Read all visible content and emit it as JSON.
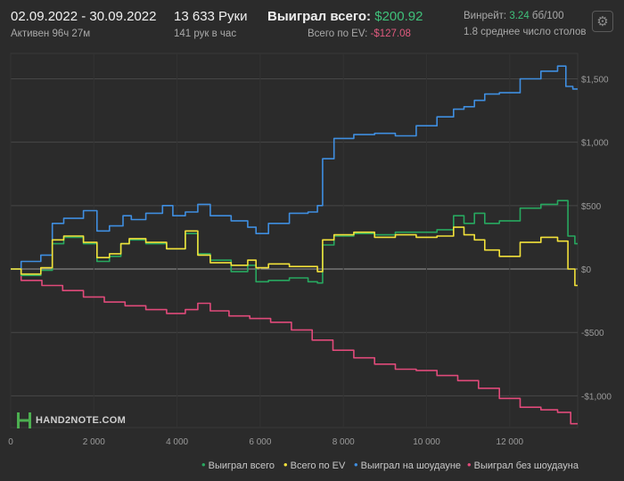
{
  "header": {
    "date_range": "02.09.2022 - 30.09.2022",
    "active_time": "Активен 96ч 27м",
    "hands": "13 633 Руки",
    "hands_per_hour": "141 рук в час",
    "won_total_label": "Выиграл всего:",
    "won_total_value": "$200.92",
    "ev_total_label": "Всего по EV:",
    "ev_total_value": "-$127.08",
    "winrate_label": "Винрейт:",
    "winrate_value": "3.24",
    "winrate_unit": "бб/100",
    "avg_tables": "1.8 среднее число столов"
  },
  "logo": {
    "text": "HAND2NOTE.COM"
  },
  "icons": {
    "settings": "gear-icon",
    "logo": "hand2note-logo-icon"
  },
  "colors": {
    "background": "#2b2b2b",
    "won_total": "#27a85f",
    "ev_total": "#f2e13a",
    "showdown": "#3f8ee0",
    "non_showdown": "#e04a7a"
  },
  "chart_data": {
    "type": "line",
    "xlim": [
      0,
      13633
    ],
    "ylim": [
      -1250,
      1700
    ],
    "x_ticks": [
      0,
      2000,
      4000,
      6000,
      8000,
      10000,
      12000
    ],
    "x_tick_labels": [
      "0",
      "2 000",
      "4 000",
      "6 000",
      "8 000",
      "10 000",
      "12 000"
    ],
    "y_ticks": [
      1500,
      1000,
      500,
      0,
      -500,
      -1000
    ],
    "y_tick_labels": [
      "$1,500",
      "$1,000",
      "$500",
      "$0",
      "-$500",
      "-$1,000"
    ],
    "grid": true,
    "legend_position": "bottom-right",
    "series": [
      {
        "name": "Выиграл всего",
        "x": [
          0,
          500,
          950,
          1050,
          1500,
          2000,
          2150,
          2600,
          2700,
          3000,
          3500,
          4000,
          4400,
          4600,
          5000,
          5600,
          5800,
          6000,
          6400,
          7000,
          7300,
          7450,
          7550,
          8000,
          8500,
          9000,
          9500,
          10000,
          10500,
          10800,
          11000,
          11300,
          11500,
          12000,
          12500,
          13000,
          13300,
          13500,
          13633
        ],
        "y": [
          0,
          -50,
          -10,
          200,
          250,
          200,
          60,
          100,
          200,
          230,
          200,
          160,
          280,
          120,
          70,
          -20,
          30,
          -100,
          -90,
          -70,
          -100,
          -110,
          190,
          260,
          280,
          270,
          290,
          290,
          310,
          420,
          360,
          440,
          360,
          380,
          480,
          510,
          540,
          260,
          200
        ]
      },
      {
        "name": "Всего по EV",
        "x": [
          0,
          500,
          950,
          1050,
          1500,
          2000,
          2150,
          2600,
          2700,
          3000,
          3500,
          4000,
          4400,
          4600,
          5000,
          5600,
          5800,
          6000,
          6400,
          7000,
          7300,
          7450,
          7550,
          8000,
          8500,
          9000,
          9500,
          10000,
          10500,
          10800,
          11000,
          11300,
          11500,
          12000,
          12500,
          13000,
          13300,
          13500,
          13633
        ],
        "y": [
          0,
          -40,
          10,
          230,
          260,
          210,
          90,
          120,
          200,
          240,
          210,
          160,
          300,
          110,
          50,
          30,
          70,
          10,
          40,
          20,
          20,
          -20,
          230,
          270,
          290,
          250,
          270,
          250,
          260,
          330,
          270,
          230,
          150,
          100,
          210,
          250,
          220,
          0,
          -130
        ]
      },
      {
        "name": "Выиграл на шоудауне",
        "x": [
          0,
          500,
          950,
          1050,
          1500,
          2000,
          2150,
          2600,
          2800,
          3000,
          3500,
          3800,
          4000,
          4400,
          4600,
          5000,
          5600,
          5800,
          6000,
          6400,
          7000,
          7300,
          7450,
          7550,
          8000,
          8500,
          9000,
          9500,
          10000,
          10500,
          10800,
          11000,
          11300,
          11500,
          12000,
          12500,
          13000,
          13300,
          13400,
          13633
        ],
        "y": [
          0,
          60,
          110,
          360,
          400,
          460,
          300,
          340,
          420,
          390,
          440,
          500,
          420,
          450,
          510,
          420,
          380,
          330,
          280,
          360,
          440,
          450,
          500,
          870,
          1030,
          1060,
          1070,
          1050,
          1130,
          1200,
          1260,
          1280,
          1330,
          1380,
          1390,
          1500,
          1560,
          1600,
          1440,
          1420
        ]
      },
      {
        "name": "Выиграл без шоудауна",
        "x": [
          0,
          500,
          1000,
          1500,
          2000,
          2500,
          3000,
          3500,
          4000,
          4400,
          4600,
          5000,
          5500,
          6000,
          6500,
          7000,
          7500,
          8000,
          8500,
          9000,
          9500,
          10000,
          10500,
          11000,
          11500,
          12000,
          12500,
          13000,
          13300,
          13633
        ],
        "y": [
          0,
          -90,
          -130,
          -170,
          -220,
          -260,
          -290,
          -320,
          -350,
          -320,
          -270,
          -330,
          -370,
          -390,
          -420,
          -480,
          -560,
          -640,
          -700,
          -750,
          -790,
          -800,
          -840,
          -880,
          -940,
          -1020,
          -1090,
          -1110,
          -1130,
          -1220
        ]
      }
    ]
  }
}
